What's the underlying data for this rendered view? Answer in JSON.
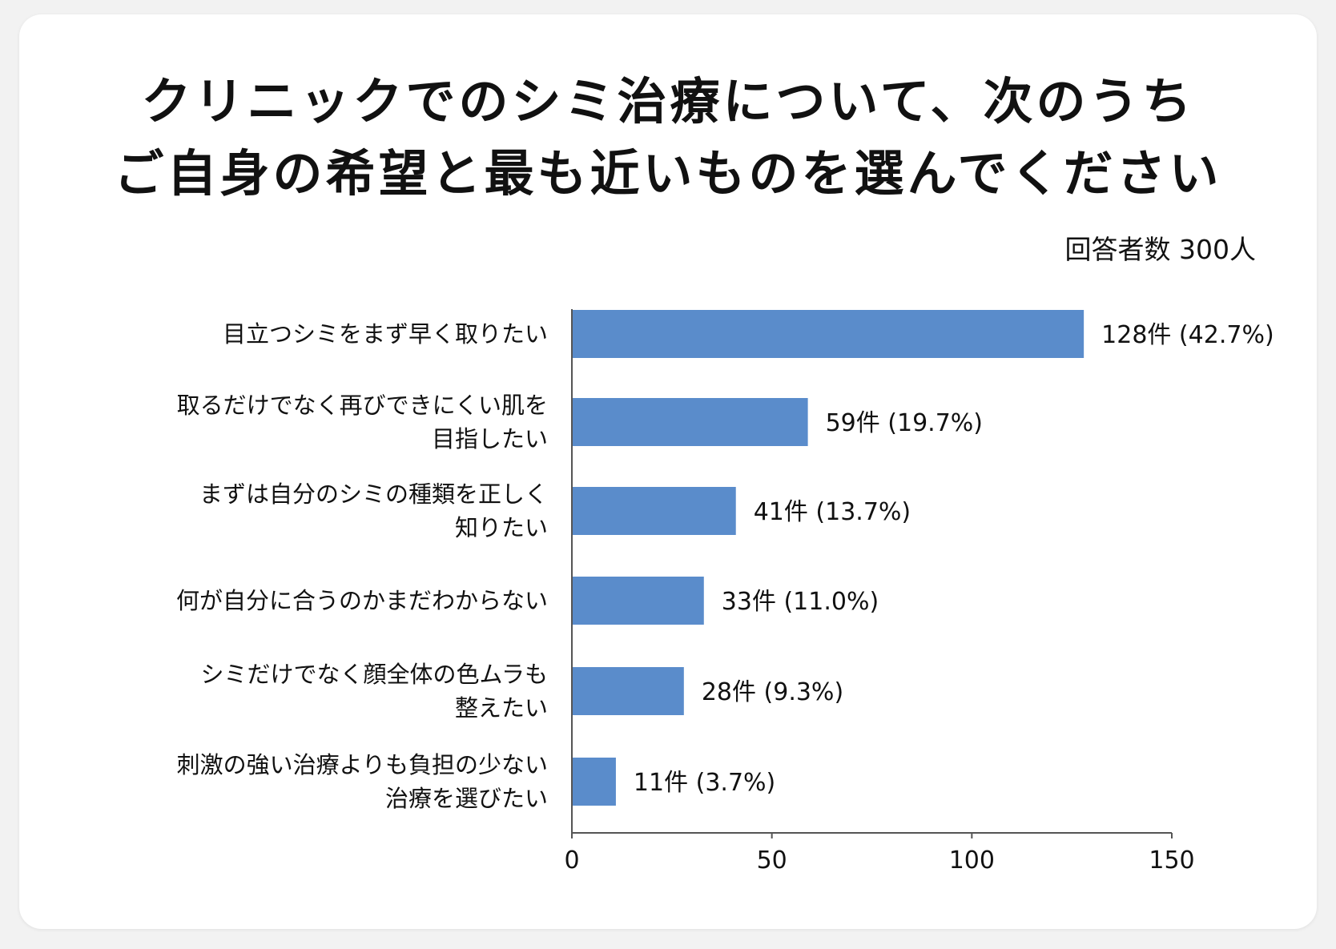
{
  "title_lines": [
    "クリニックでのシミ治療について、次のうち",
    "ご自身の希望と最も近いものを選んでください"
  ],
  "respondents": "回答者数 300人",
  "colors": {
    "bar": "#5a8ccb",
    "axis": "#555555"
  },
  "chart_data": {
    "type": "bar",
    "orientation": "horizontal",
    "categories": [
      [
        "目立つシミをまず早く取りたい"
      ],
      [
        "取るだけでなく再びできにくい肌を",
        "目指したい"
      ],
      [
        "まずは自分のシミの種類を正しく",
        "知りたい"
      ],
      [
        "何が自分に合うのかまだわからない"
      ],
      [
        "シミだけでなく顔全体の色ムラも",
        "整えたい"
      ],
      [
        "刺激の強い治療よりも負担の少ない",
        "治療を選びたい"
      ]
    ],
    "values": [
      128,
      59,
      41,
      33,
      28,
      11
    ],
    "value_labels": [
      "128件 (42.7%)",
      "59件 (19.7%)",
      "41件 (13.7%)",
      "33件 (11.0%)",
      "28件 (9.3%)",
      "11件 (3.7%)"
    ],
    "xlim": [
      0,
      150
    ],
    "xticks": [
      0,
      50,
      100,
      150
    ],
    "grid": false
  }
}
